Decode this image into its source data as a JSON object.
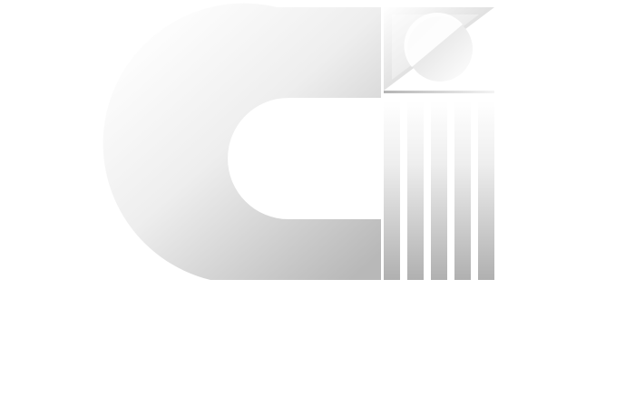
{
  "logo": {
    "icon": "abstract-c-emblem-icon",
    "colors": {
      "light": "#ffffff",
      "mid": "#e6e6e6",
      "dark": "#b4b4b4",
      "background": "#ffffff"
    }
  }
}
